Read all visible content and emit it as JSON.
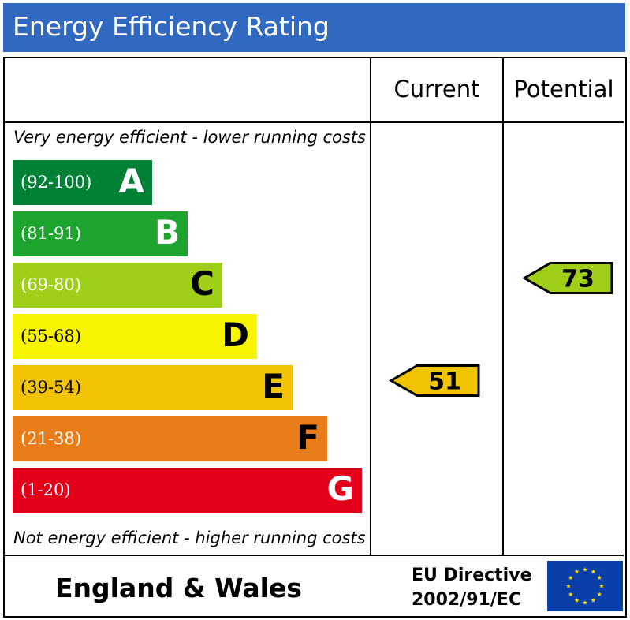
{
  "title": "Energy Efficiency Rating",
  "columns": {
    "current": "Current",
    "potential": "Potential"
  },
  "captions": {
    "top": "Very energy efficient - lower running costs",
    "bottom": "Not energy efficient - higher running costs"
  },
  "chart_data": {
    "type": "bar",
    "title": "Energy Efficiency Rating",
    "categories": [
      "A",
      "B",
      "C",
      "D",
      "E",
      "F",
      "G"
    ],
    "bands": [
      {
        "letter": "A",
        "range": "(92-100)",
        "min": 92,
        "max": 100,
        "color": "#008135"
      },
      {
        "letter": "B",
        "range": "(81-91)",
        "min": 81,
        "max": 91,
        "color": "#1ca42e"
      },
      {
        "letter": "C",
        "range": "(69-80)",
        "min": 69,
        "max": 80,
        "color": "#a0cf1a"
      },
      {
        "letter": "D",
        "range": "(55-68)",
        "min": 55,
        "max": 68,
        "color": "#f8f400"
      },
      {
        "letter": "E",
        "range": "(39-54)",
        "min": 39,
        "max": 54,
        "color": "#f1c300"
      },
      {
        "letter": "F",
        "range": "(21-38)",
        "min": 21,
        "max": 38,
        "color": "#e77c18"
      },
      {
        "letter": "G",
        "range": "(1-20)",
        "min": 1,
        "max": 20,
        "color": "#e2001a"
      }
    ],
    "current": {
      "value": 51,
      "band": "E",
      "color": "#f1c300"
    },
    "potential": {
      "value": 73,
      "band": "C",
      "color": "#a0cf1a"
    }
  },
  "footer": {
    "country": "England & Wales",
    "directive_line1": "EU Directive",
    "directive_line2": "2002/91/EC"
  },
  "colors": {
    "title_bar": "#3169c0",
    "eu_blue": "#0a3ea8",
    "eu_star": "#ffdd00"
  },
  "icons": {
    "eu_flag": "eu-flag-icon"
  }
}
